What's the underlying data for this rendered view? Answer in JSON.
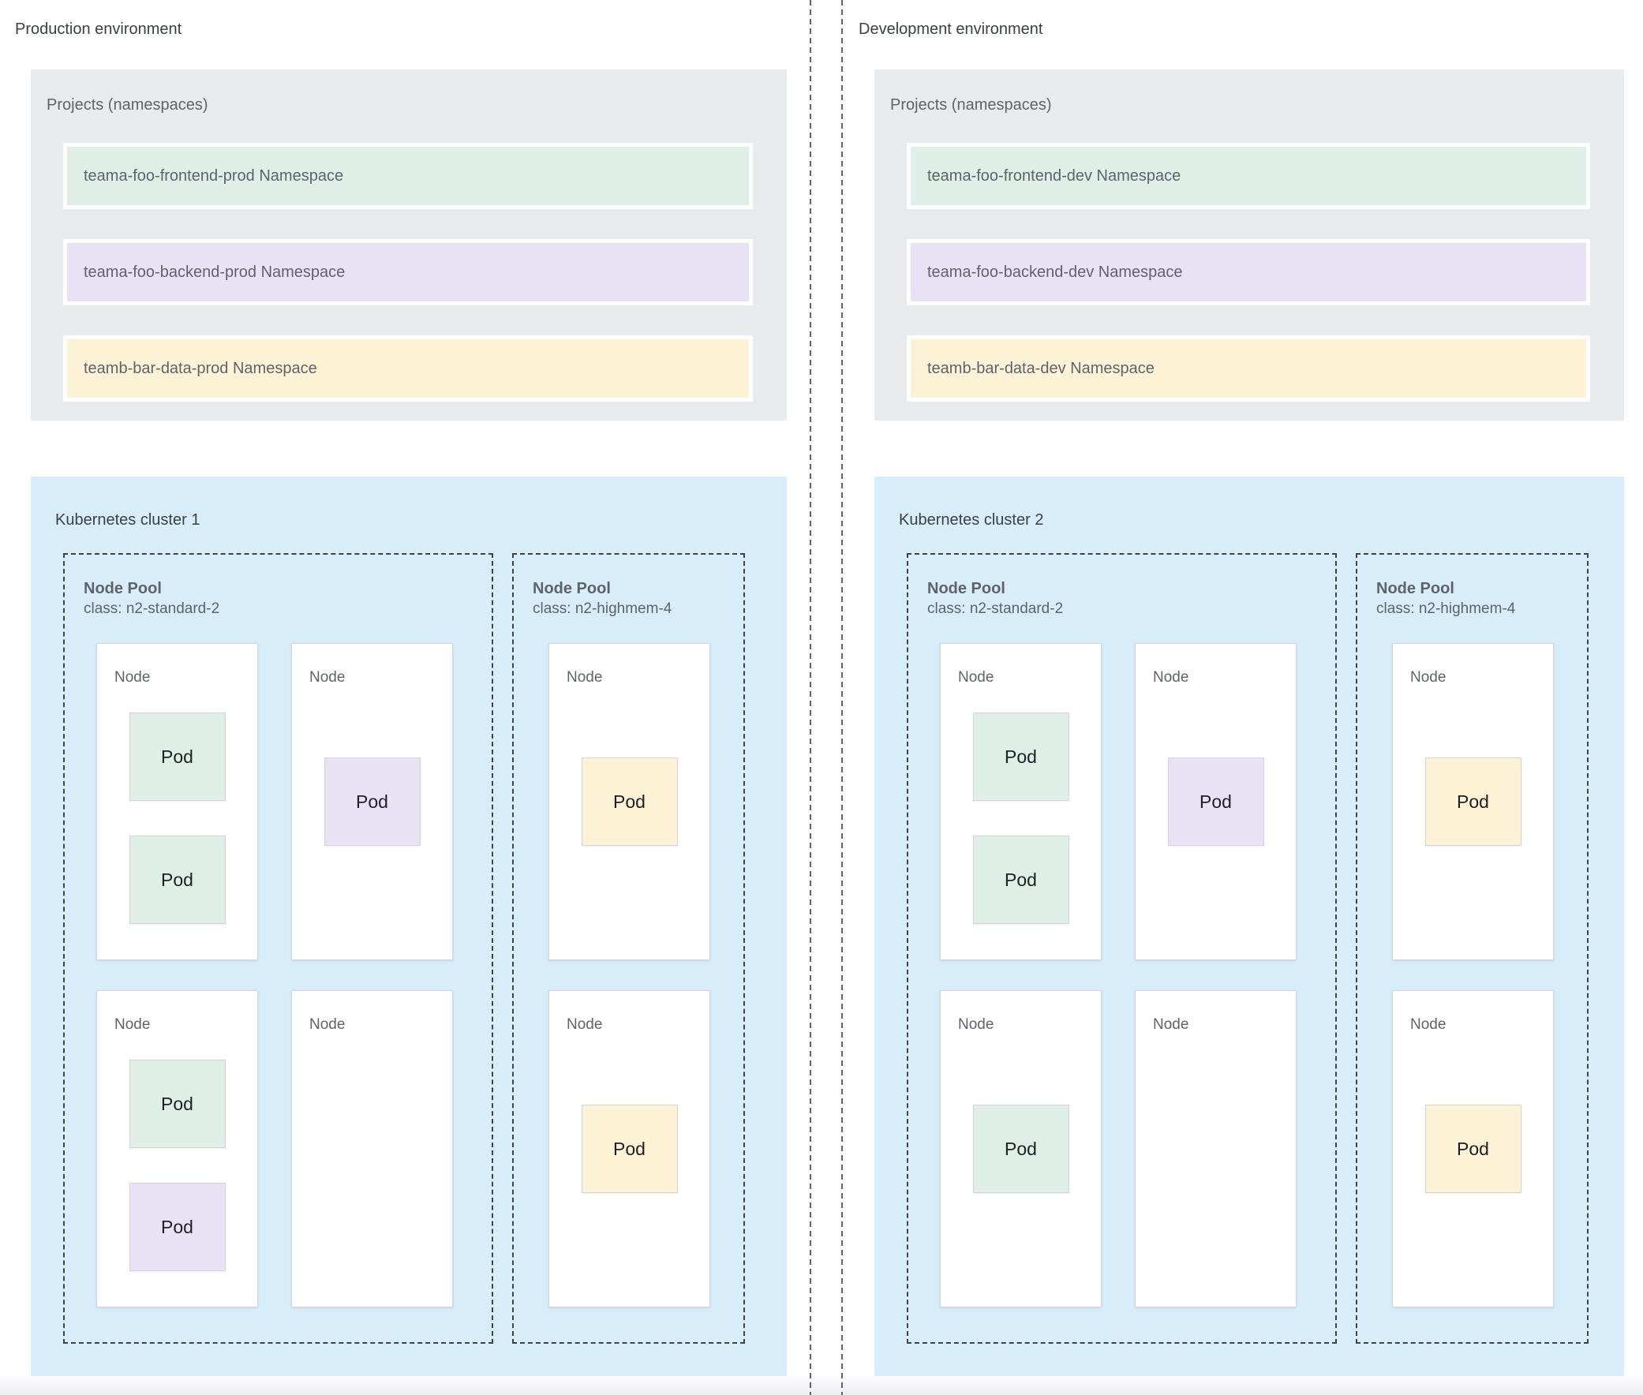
{
  "labels": {
    "node": "Node",
    "pod": "Pod"
  },
  "colors": {
    "frontend_ns": "#dfeee7",
    "backend_ns": "#e9e2f4",
    "data_ns": "#fcf3d7",
    "projects_bg": "#e8ebee",
    "cluster_bg": "#d8edfa"
  },
  "environments": [
    {
      "title": "Production environment",
      "projects": {
        "label": "Projects (namespaces)",
        "namespaces": [
          {
            "label": "teama-foo-frontend-prod Namespace",
            "color": "frontend_ns"
          },
          {
            "label": "teama-foo-backend-prod Namespace",
            "color": "backend_ns"
          },
          {
            "label": "teamb-bar-data-prod Namespace",
            "color": "data_ns"
          }
        ]
      },
      "cluster": {
        "title": "Kubernetes cluster 1",
        "pools": [
          {
            "name": "Node Pool",
            "class": "class: n2-standard-2",
            "nodes": [
              {
                "label": "Node",
                "layout": "stack",
                "pods": [
                  {
                    "label": "Pod",
                    "color": "frontend_ns"
                  },
                  {
                    "label": "Pod",
                    "color": "frontend_ns"
                  }
                ]
              },
              {
                "label": "Node",
                "layout": "center",
                "pods": [
                  {
                    "label": "Pod",
                    "color": "backend_ns"
                  }
                ]
              },
              {
                "label": "Node",
                "layout": "stack",
                "pods": [
                  {
                    "label": "Pod",
                    "color": "frontend_ns"
                  },
                  {
                    "label": "Pod",
                    "color": "backend_ns"
                  }
                ]
              },
              {
                "label": "Node",
                "layout": "center",
                "pods": []
              }
            ]
          },
          {
            "name": "Node Pool",
            "class": "class: n2-highmem-4",
            "nodes": [
              {
                "label": "Node",
                "layout": "center",
                "pods": [
                  {
                    "label": "Pod",
                    "color": "data_ns"
                  }
                ]
              },
              {
                "label": "Node",
                "layout": "center",
                "pods": [
                  {
                    "label": "Pod",
                    "color": "data_ns"
                  }
                ]
              }
            ]
          }
        ]
      }
    },
    {
      "title": "Development environment",
      "projects": {
        "label": "Projects (namespaces)",
        "namespaces": [
          {
            "label": "teama-foo-frontend-dev Namespace",
            "color": "frontend_ns"
          },
          {
            "label": "teama-foo-backend-dev Namespace",
            "color": "backend_ns"
          },
          {
            "label": "teamb-bar-data-dev Namespace",
            "color": "data_ns"
          }
        ]
      },
      "cluster": {
        "title": "Kubernetes cluster 2",
        "pools": [
          {
            "name": "Node Pool",
            "class": "class: n2-standard-2",
            "nodes": [
              {
                "label": "Node",
                "layout": "stack",
                "pods": [
                  {
                    "label": "Pod",
                    "color": "frontend_ns"
                  },
                  {
                    "label": "Pod",
                    "color": "frontend_ns"
                  }
                ]
              },
              {
                "label": "Node",
                "layout": "center",
                "pods": [
                  {
                    "label": "Pod",
                    "color": "backend_ns"
                  }
                ]
              },
              {
                "label": "Node",
                "layout": "center",
                "pods": [
                  {
                    "label": "Pod",
                    "color": "frontend_ns"
                  }
                ]
              },
              {
                "label": "Node",
                "layout": "center",
                "pods": []
              }
            ]
          },
          {
            "name": "Node Pool",
            "class": "class: n2-highmem-4",
            "nodes": [
              {
                "label": "Node",
                "layout": "center",
                "pods": [
                  {
                    "label": "Pod",
                    "color": "data_ns"
                  }
                ]
              },
              {
                "label": "Node",
                "layout": "center",
                "pods": [
                  {
                    "label": "Pod",
                    "color": "data_ns"
                  }
                ]
              }
            ]
          }
        ]
      }
    }
  ]
}
